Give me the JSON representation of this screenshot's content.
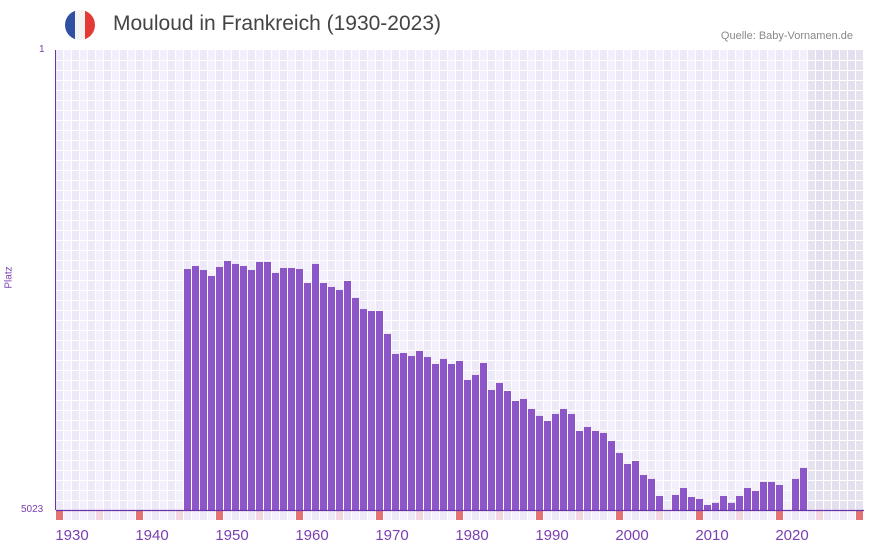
{
  "header": {
    "title": "Mouloud in Frankreich (1930-2023)",
    "source": "Quelle: Baby-Vornamen.de",
    "flag_icon": "france-flag-icon"
  },
  "chart_data": {
    "type": "bar",
    "title": "Mouloud in Frankreich (1930-2023)",
    "xlabel": "",
    "ylabel": "Platz",
    "ylim": [
      5023,
      1
    ],
    "xlim": [
      1930,
      2030
    ],
    "y_tick_labels": [
      "1",
      "5023"
    ],
    "x_tick_labels": [
      "1930",
      "1940",
      "1950",
      "1960",
      "1970",
      "1980",
      "1990",
      "2000",
      "2010",
      "2020"
    ],
    "x_tick_values": [
      1930,
      1940,
      1950,
      1960,
      1970,
      1980,
      1990,
      2000,
      2010,
      2020
    ],
    "x": [
      1946,
      1947,
      1948,
      1949,
      1950,
      1951,
      1952,
      1953,
      1954,
      1955,
      1956,
      1957,
      1958,
      1959,
      1960,
      1961,
      1962,
      1963,
      1964,
      1965,
      1966,
      1967,
      1968,
      1969,
      1970,
      1971,
      1972,
      1973,
      1974,
      1975,
      1976,
      1977,
      1978,
      1979,
      1980,
      1981,
      1982,
      1983,
      1984,
      1985,
      1986,
      1987,
      1988,
      1989,
      1990,
      1991,
      1992,
      1993,
      1994,
      1995,
      1996,
      1997,
      1998,
      1999,
      2000,
      2001,
      2002,
      2003,
      2004,
      2005,
      2006,
      2007,
      2008,
      2009,
      2010,
      2011,
      2012,
      2013,
      2014,
      2015,
      2016,
      2017,
      2018,
      2019,
      2020,
      2021,
      2022,
      2023
    ],
    "values": [
      2392,
      2359,
      2403,
      2468,
      2370,
      2304,
      2337,
      2359,
      2403,
      2315,
      2315,
      2435,
      2381,
      2381,
      2392,
      2545,
      2337,
      2545,
      2588,
      2621,
      2523,
      2708,
      2829,
      2850,
      2850,
      3101,
      3320,
      3309,
      3342,
      3287,
      3353,
      3429,
      3374,
      3429,
      3396,
      3604,
      3549,
      3418,
      3713,
      3636,
      3724,
      3833,
      3811,
      3920,
      3996,
      4051,
      3975,
      3920,
      3975,
      4160,
      4117,
      4160,
      4182,
      4270,
      4401,
      4521,
      4488,
      4641,
      4684,
      4870,
      null,
      4859,
      4783,
      4881,
      4903,
      4968,
      4946,
      4870,
      4946,
      4870,
      4783,
      4815,
      4717,
      4717,
      4750,
      null,
      4684,
      4564
    ],
    "last_data_year": 2023,
    "colors": {
      "bar": "#8c55c8",
      "axis": "#6a35a8",
      "decade_marker": "#e57373",
      "half_decade_marker": "#f4d6e0"
    }
  }
}
